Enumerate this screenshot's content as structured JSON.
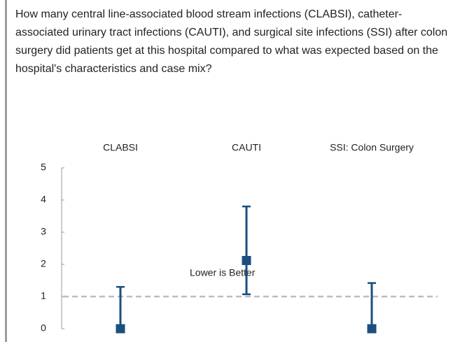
{
  "chart_data": {
    "type": "errorbar",
    "title": "How many central line-associated blood stream infections (CLABSI), catheter-associated urinary tract infections (CAUTI), and surgical site infections (SSI) after colon surgery did patients get at this hospital compared to what was expected based on the hospital's characteristics and case mix?",
    "categories": [
      "CLABSI",
      "CAUTI",
      "SSI: Colon Surgery"
    ],
    "values": [
      0,
      2.12,
      0
    ],
    "lower": [
      0,
      1.07,
      0
    ],
    "upper": [
      1.3,
      3.8,
      1.42
    ],
    "color": "#1b4f7f",
    "ylim": [
      0,
      5
    ],
    "yticks": [
      0,
      1,
      2,
      3,
      4,
      5
    ],
    "reference_line": 1,
    "annotation": "Lower is Better"
  }
}
